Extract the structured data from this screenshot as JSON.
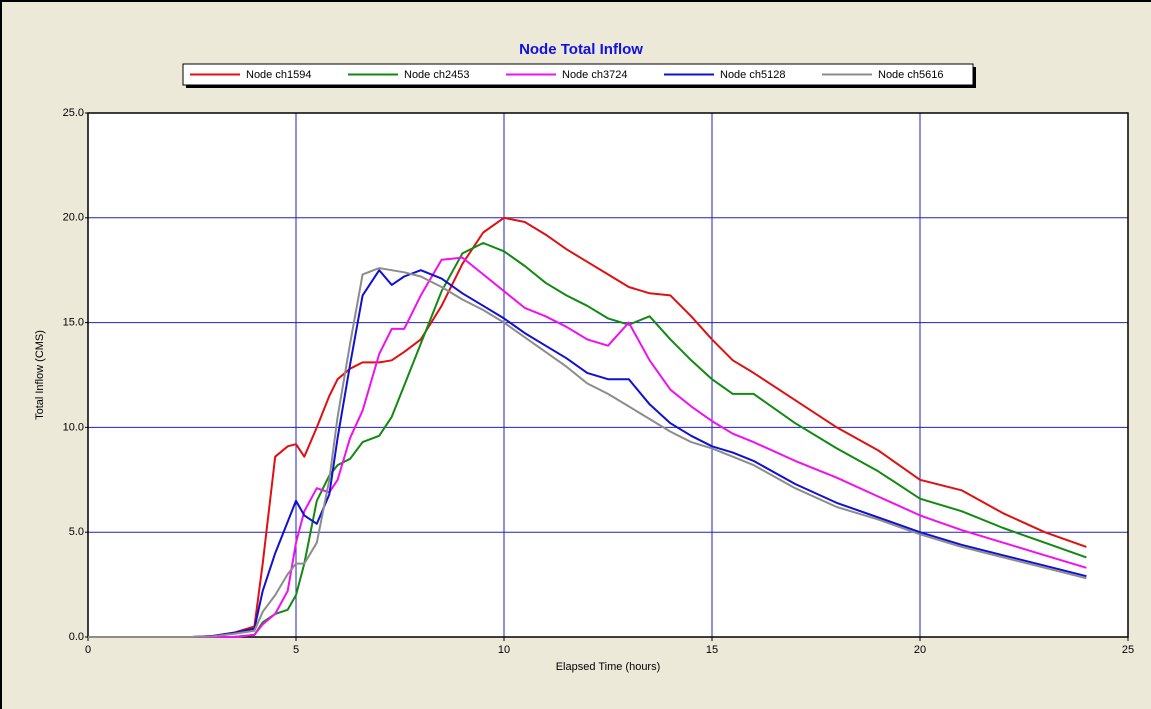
{
  "chart_data": {
    "type": "line",
    "title": "Node Total Inflow",
    "x_label": "Elapsed Time (hours)",
    "y_label": "Total Inflow (CMS)",
    "x": [
      0,
      2.5,
      3,
      3.5,
      4,
      4.2,
      4.5,
      4.8,
      5,
      5.2,
      5.5,
      5.8,
      6,
      6.3,
      6.6,
      7,
      7.3,
      7.6,
      8,
      8.5,
      9,
      9.5,
      10,
      10.5,
      11,
      11.5,
      12,
      12.5,
      13,
      13.5,
      14,
      14.5,
      15,
      15.5,
      16,
      17,
      18,
      19,
      20,
      21,
      22,
      23,
      24
    ],
    "series": [
      {
        "name": "Node ch1594",
        "color": "#e01010",
        "values": [
          0,
          0,
          0.05,
          0.2,
          0.5,
          3.5,
          8.6,
          9.1,
          9.2,
          8.6,
          10,
          11.5,
          12.3,
          12.8,
          13.1,
          13.1,
          13.2,
          13.6,
          14.2,
          15.8,
          17.8,
          19.3,
          20,
          19.8,
          19.2,
          18.5,
          17.9,
          17.3,
          16.7,
          16.4,
          16.3,
          15.3,
          14.2,
          13.2,
          12.6,
          11.3,
          10,
          8.9,
          7.5,
          7,
          5.9,
          5,
          4.3
        ]
      },
      {
        "name": "Node ch2453",
        "color": "#108a10",
        "values": [
          0,
          0,
          0,
          0,
          0.1,
          0.7,
          1.1,
          1.3,
          2,
          3.5,
          6.5,
          7.7,
          8.2,
          8.5,
          9.3,
          9.6,
          10.5,
          12,
          14,
          16.5,
          18.3,
          18.8,
          18.4,
          17.7,
          16.9,
          16.3,
          15.8,
          15.2,
          14.9,
          15.3,
          14.2,
          13.2,
          12.3,
          11.6,
          11.6,
          10.2,
          9,
          7.9,
          6.6,
          6,
          5.2,
          4.5,
          3.8
        ]
      },
      {
        "name": "Node ch3724",
        "color": "#f010f0",
        "values": [
          0,
          0,
          0,
          0,
          0.1,
          0.6,
          1.1,
          2.2,
          4.5,
          6,
          7.1,
          6.9,
          7.5,
          9.5,
          10.8,
          13.5,
          14.7,
          14.7,
          16.3,
          18,
          18.1,
          17.3,
          16.5,
          15.7,
          15.3,
          14.8,
          14.2,
          13.9,
          15,
          13.2,
          11.8,
          11,
          10.3,
          9.7,
          9.3,
          8.4,
          7.6,
          6.7,
          5.8,
          5.1,
          4.5,
          3.9,
          3.3
        ]
      },
      {
        "name": "Node ch5128",
        "color": "#1010d0",
        "values": [
          0,
          0,
          0.05,
          0.2,
          0.4,
          2.2,
          4,
          5.5,
          6.5,
          5.8,
          5.4,
          6.8,
          9.5,
          13,
          16.3,
          17.5,
          16.8,
          17.2,
          17.5,
          17.1,
          16.4,
          15.8,
          15.2,
          14.5,
          13.9,
          13.3,
          12.6,
          12.3,
          12.3,
          11.1,
          10.2,
          9.6,
          9.1,
          8.8,
          8.4,
          7.3,
          6.4,
          5.7,
          5,
          4.4,
          3.9,
          3.4,
          2.9
        ]
      },
      {
        "name": "Node ch5616",
        "color": "#8c8c8c",
        "values": [
          0,
          0,
          0.03,
          0.15,
          0.3,
          1.2,
          2,
          3,
          3.5,
          3.5,
          4.5,
          7.5,
          10.5,
          14,
          17.3,
          17.6,
          17.5,
          17.4,
          17.2,
          16.7,
          16.1,
          15.6,
          15,
          14.3,
          13.6,
          12.9,
          12.1,
          11.6,
          11,
          10.4,
          9.8,
          9.3,
          9,
          8.6,
          8.2,
          7.1,
          6.2,
          5.6,
          4.9,
          4.3,
          3.8,
          3.3,
          2.8
        ]
      }
    ],
    "xlim": [
      0,
      25
    ],
    "xticks": [
      0,
      5,
      10,
      15,
      20,
      25
    ],
    "ylim": [
      0,
      25
    ],
    "yticks": [
      {
        "value": 0,
        "label": "0.0"
      },
      {
        "value": 5,
        "label": "5.0"
      },
      {
        "value": 10,
        "label": "10.0"
      },
      {
        "value": 15,
        "label": "15.0"
      },
      {
        "value": 20,
        "label": "20.0"
      },
      {
        "value": 25,
        "label": "25.0"
      }
    ],
    "grid": true,
    "grid_color": "#2020c0"
  }
}
